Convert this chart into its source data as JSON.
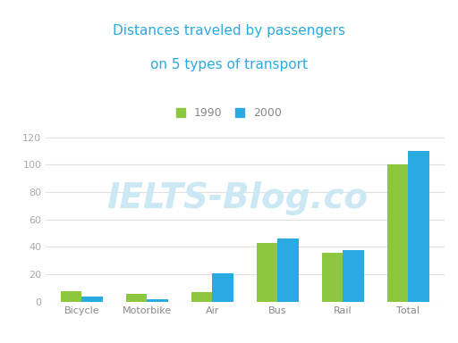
{
  "title": "Distances traveled by passengers\non 5 types of transport",
  "categories": [
    "Bicycle",
    "Motorbike",
    "Air",
    "Bus",
    "Rail",
    "Total"
  ],
  "values_1990": [
    8,
    6,
    7,
    43,
    36,
    100
  ],
  "values_2000": [
    4,
    2,
    21,
    46,
    38,
    110
  ],
  "color_1990": "#8dc63f",
  "color_2000": "#29abe2",
  "legend_1990": "1990",
  "legend_2000": "2000",
  "ylim": [
    0,
    130
  ],
  "yticks": [
    0,
    20,
    40,
    60,
    80,
    100,
    120
  ],
  "bar_width": 0.32,
  "title_color": "#29abe2",
  "tick_color": "#aaaaaa",
  "grid_color": "#e0e0e0",
  "background_color": "#ffffff",
  "watermark_text": "IELTS-Blog.co",
  "watermark_color": "#cce8f5",
  "watermark_fontsize": 28,
  "title_fontsize": 11,
  "legend_fontsize": 9,
  "xtick_fontsize": 8,
  "ytick_fontsize": 8
}
